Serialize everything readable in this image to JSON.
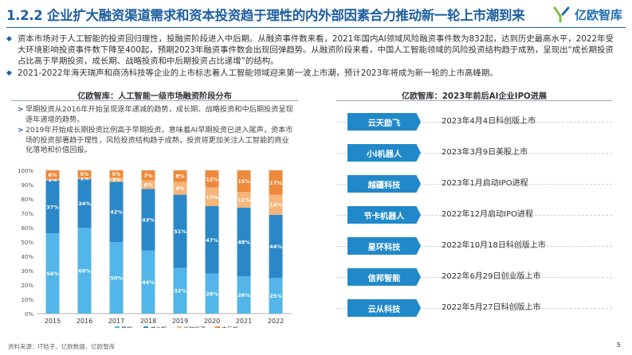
{
  "header": {
    "title": "1.2.2 企业扩大融资渠道需求和资本投资趋于理性的内外部因素合力推动新一轮上市潮到来",
    "logo_text": "亿欧智库"
  },
  "bullets": [
    "资本市场对于人工智能的投资回归理性，投融资阶段进入中后期。从融资事件数来看，2021年国内AI领域风险融资事件数为832起，达到历史最高水平，2022年受大环境影响投资事件数下降至400起，预期2023年融资事件数会出现回弹趋势。从融资阶段来看，中国人工智能领域的风险投资结构趋于成熟，呈现出“成长期投资占比高于早期投资，成长期、战略投资和中后期投资占比递增”的结构。",
    "2021-2022年海天瑞声和商汤科技等企业的上市标志着人工智能领域迎来第一波上市潮，预计2023年将成为新一轮的上市高峰期。"
  ],
  "left_panel": {
    "title": "亿欧智库：人工智能一级市场融资阶段分布",
    "notes": [
      "早期投资从2016年开始呈现逐年递减的趋势，成长期、战略投资和中后期投资呈现逐年递增的趋势。",
      "2019年开始成长期投资比例高于早期投资，意味着AI早期投资已进入尾声，资本市场的投资部署趋于理性，风险投资结构趋于成熟，投资将更加关注人工智能的商业化落地和价值回报。"
    ]
  },
  "chart_data": {
    "type": "bar",
    "stacked": true,
    "categories": [
      "2015",
      "2016",
      "2017",
      "2018",
      "2019",
      "2020",
      "2021",
      "2022"
    ],
    "ylim": [
      0,
      100
    ],
    "yticks": [
      "0%",
      "10%",
      "20%",
      "30%",
      "40%",
      "50%",
      "60%",
      "70%",
      "80%",
      "90%",
      "100%"
    ],
    "legend_position": "bottom",
    "series": [
      {
        "name": "早期",
        "color": "#52b6e8",
        "values": [
          56,
          60,
          50,
          44,
          32,
          28,
          26,
          25
        ],
        "labels": [
          "56%",
          "60%",
          "50%",
          "44%",
          "32%",
          "28%",
          "26%",
          "25%"
        ]
      },
      {
        "name": "成长期",
        "color": "#2a88c8",
        "values": [
          37,
          34,
          42,
          43,
          51,
          47,
          48,
          44
        ],
        "labels": [
          "37%",
          "34%",
          "42%",
          "43%",
          "51%",
          "47%",
          "48%",
          "44%"
        ]
      },
      {
        "name": "战略投资",
        "color": "#f5b57a",
        "values": [
          1,
          1,
          3,
          6,
          9,
          13,
          11,
          14
        ],
        "labels": [
          "1%",
          "1%",
          "3%",
          "6%",
          "9%",
          "13%",
          "11%",
          "14%"
        ]
      },
      {
        "name": "中后期",
        "color": "#ee8a3c",
        "values": [
          6,
          5,
          5,
          7,
          8,
          12,
          15,
          17
        ],
        "labels": [
          "6%",
          "5%",
          "5%",
          "7%",
          "8%",
          "12%",
          "15%",
          "17%"
        ]
      }
    ]
  },
  "right_panel": {
    "title": "亿欧智库：2023年前后AI企业IPO进展",
    "items": [
      {
        "company": "云天励飞",
        "event": "2023年4月4日科创版上市"
      },
      {
        "company": "小i机器人",
        "event": "2023年3月9日美股上市"
      },
      {
        "company": "越疆科技",
        "event": "2023年1月启动IPO进程"
      },
      {
        "company": "节卡机器人",
        "event": "2022年12月启动IPO进程"
      },
      {
        "company": "星环科技",
        "event": "2022年10月18日科创版上市"
      },
      {
        "company": "信邦智能",
        "event": "2022年6月29日创业版上市"
      },
      {
        "company": "云从科技",
        "event": "2022年5月27日科创版上市"
      }
    ]
  },
  "footer": {
    "source": "资料来源：IT桔子、亿欧数据、亿欧智库",
    "page": "5"
  }
}
